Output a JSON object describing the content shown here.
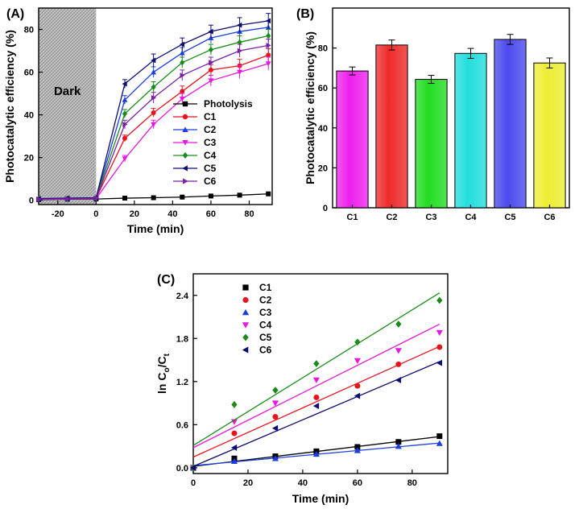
{
  "figure": {
    "labels": {
      "a": "(A)",
      "b": "(B)",
      "c": "(C)"
    }
  },
  "chart_data": [
    {
      "id": "A",
      "type": "line",
      "ylabel": "Photocatalytic efficiency (%)",
      "xlabel": "Time (min)",
      "xlim": [
        -30,
        92
      ],
      "ylim": [
        -2,
        90
      ],
      "xticks": [
        -20,
        0,
        20,
        40,
        60,
        80
      ],
      "yticks": [
        0,
        20,
        40,
        60,
        80
      ],
      "dark_region": {
        "label": "Dark",
        "x_from": -30,
        "x_to": 0
      },
      "legend_position": "middle-right",
      "series": [
        {
          "name": "Photolysis",
          "color": "#000000",
          "marker": "square",
          "x": [
            -30,
            -15,
            0,
            15,
            30,
            45,
            60,
            75,
            90
          ],
          "y": [
            0.3,
            0.5,
            0.6,
            1.0,
            1.2,
            1.5,
            2.0,
            2.4,
            3.0
          ],
          "err": [
            0,
            0,
            0,
            0,
            0,
            0,
            0,
            0,
            0
          ]
        },
        {
          "name": "C1",
          "color": "#e8141c",
          "marker": "circle",
          "x": [
            -30,
            -15,
            0,
            15,
            30,
            45,
            60,
            75,
            90
          ],
          "y": [
            0.6,
            0.8,
            1.0,
            29,
            41,
            51,
            61,
            63,
            68
          ],
          "err": [
            0.4,
            0.4,
            0.5,
            1.5,
            2.0,
            2.5,
            2.5,
            3.0,
            3.0
          ]
        },
        {
          "name": "C2",
          "color": "#1a3ee0",
          "marker": "triangle-up",
          "x": [
            -30,
            -15,
            0,
            15,
            30,
            45,
            60,
            75,
            90
          ],
          "y": [
            0.5,
            0.7,
            1.0,
            47,
            60,
            69,
            76,
            79,
            81
          ],
          "err": [
            0.4,
            0.4,
            0.5,
            2.0,
            2.5,
            2.5,
            2.5,
            3.0,
            3.0
          ]
        },
        {
          "name": "C3",
          "color": "#e816e0",
          "marker": "triangle-down",
          "x": [
            -30,
            -15,
            0,
            15,
            30,
            45,
            60,
            75,
            90
          ],
          "y": [
            0.4,
            0.6,
            0.8,
            19.5,
            35.5,
            47.5,
            56,
            60,
            64
          ],
          "err": [
            0.4,
            0.4,
            0.5,
            1.5,
            2.0,
            2.5,
            2.5,
            3.0,
            3.0
          ]
        },
        {
          "name": "C4",
          "color": "#1a8c1a",
          "marker": "diamond",
          "x": [
            -30,
            -15,
            0,
            15,
            30,
            45,
            60,
            75,
            90
          ],
          "y": [
            0.7,
            0.9,
            1.1,
            40.5,
            53,
            64.5,
            70.5,
            74,
            77
          ],
          "err": [
            0.4,
            0.4,
            0.5,
            2.0,
            2.5,
            2.5,
            2.5,
            3.0,
            3.0
          ]
        },
        {
          "name": "C5",
          "color": "#0d0d6e",
          "marker": "triangle-left",
          "x": [
            -30,
            -15,
            0,
            15,
            30,
            45,
            60,
            75,
            90
          ],
          "y": [
            0.8,
            1.0,
            1.2,
            54.5,
            65.5,
            73,
            79,
            82,
            84
          ],
          "err": [
            0.4,
            0.4,
            0.5,
            2.0,
            3.0,
            3.0,
            3.0,
            3.5,
            3.5
          ]
        },
        {
          "name": "C6",
          "color": "#7a1fa8",
          "marker": "triangle-right",
          "x": [
            -30,
            -15,
            0,
            15,
            30,
            45,
            60,
            75,
            90
          ],
          "y": [
            0.5,
            0.7,
            0.9,
            35.5,
            48,
            58.5,
            64.5,
            70,
            72.5
          ],
          "err": [
            0.4,
            0.4,
            0.5,
            2.0,
            2.5,
            2.5,
            2.5,
            3.0,
            3.0
          ]
        }
      ]
    },
    {
      "id": "B",
      "type": "bar",
      "ylabel": "Photocatalytic efficiency (%)",
      "xlabel": "",
      "ylim": [
        0,
        100
      ],
      "yticks": [
        0,
        20,
        40,
        60,
        80
      ],
      "categories": [
        "C1",
        "C2",
        "C3",
        "C4",
        "C5",
        "C6"
      ],
      "values": [
        68.5,
        81.5,
        64.3,
        77.3,
        84.3,
        72.5
      ],
      "errors": [
        2.0,
        2.5,
        2.0,
        2.5,
        2.5,
        2.5
      ],
      "colors": [
        "#ee20ee",
        "#ee2a2a",
        "#22dd22",
        "#22dddd",
        "#4a4aee",
        "#eeee33"
      ]
    },
    {
      "id": "C",
      "type": "scatter",
      "ylabel_main": "ln C",
      "ylabel_sub1": "o",
      "ylabel_mid": "/C",
      "ylabel_sub2": "t",
      "xlabel": "Time (min)",
      "xlim": [
        0,
        93
      ],
      "ylim": [
        -0.08,
        2.7
      ],
      "xticks": [
        0,
        20,
        40,
        60,
        80
      ],
      "yticks": [
        0.0,
        0.6,
        1.2,
        1.8,
        2.4
      ],
      "ytick_labels": [
        "0.0",
        "0.6",
        "1.2",
        "1.8",
        "2.4"
      ],
      "legend_position": "top-left",
      "series": [
        {
          "name": "C1",
          "color": "#000000",
          "marker": "square",
          "x": [
            0,
            15,
            30,
            45,
            60,
            75,
            90
          ],
          "y": [
            0.0,
            0.13,
            0.16,
            0.23,
            0.29,
            0.36,
            0.44
          ],
          "fit": {
            "slope": 0.0046,
            "intercept": 0.02
          }
        },
        {
          "name": "C2",
          "color": "#e8141c",
          "marker": "circle",
          "x": [
            0,
            15,
            30,
            45,
            60,
            75,
            90
          ],
          "y": [
            0.0,
            0.48,
            0.71,
            0.98,
            1.14,
            1.44,
            1.68
          ],
          "fit": {
            "slope": 0.0171,
            "intercept": 0.15
          }
        },
        {
          "name": "C3",
          "color": "#1a3ee0",
          "marker": "triangle-up",
          "x": [
            0,
            15,
            30,
            45,
            60,
            75,
            90
          ],
          "y": [
            0.0,
            0.09,
            0.13,
            0.19,
            0.24,
            0.3,
            0.34
          ],
          "fit": {
            "slope": 0.0035,
            "intercept": 0.03
          }
        },
        {
          "name": "C4",
          "color": "#e816e0",
          "marker": "triangle-down",
          "x": [
            0,
            15,
            30,
            45,
            60,
            75,
            90
          ],
          "y": [
            0.0,
            0.64,
            0.9,
            1.22,
            1.49,
            1.63,
            1.88
          ],
          "fit": {
            "slope": 0.0191,
            "intercept": 0.28
          }
        },
        {
          "name": "C5",
          "color": "#1a8c1a",
          "marker": "diamond",
          "x": [
            0,
            15,
            30,
            45,
            60,
            75,
            90
          ],
          "y": [
            0.0,
            0.88,
            1.08,
            1.45,
            1.75,
            2.0,
            2.33
          ],
          "fit": {
            "slope": 0.0236,
            "intercept": 0.31
          }
        },
        {
          "name": "C6",
          "color": "#0d0d6e",
          "marker": "triangle-left",
          "x": [
            0,
            15,
            30,
            45,
            60,
            75,
            90
          ],
          "y": [
            0.0,
            0.28,
            0.55,
            0.86,
            1.0,
            1.22,
            1.46
          ],
          "fit": {
            "slope": 0.0162,
            "intercept": 0.02
          }
        }
      ]
    }
  ]
}
